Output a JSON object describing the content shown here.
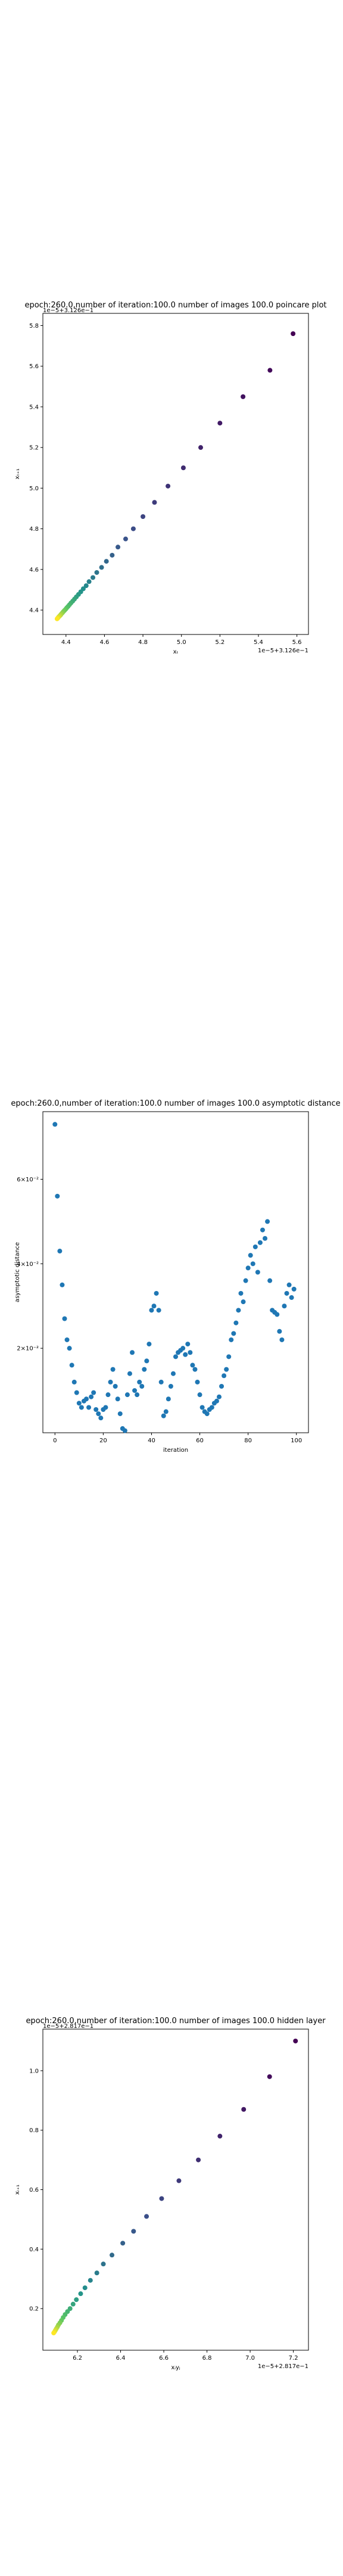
{
  "chart_data": [
    {
      "type": "scatter",
      "title": "epoch:260.0,number of iteration:100.0 number of images 100.0 poincare plot",
      "xlabel": "xₜ",
      "ylabel": "xₜ₊₁",
      "x_offset_text": "1e−5+3.126e−1",
      "y_offset_text": "1e−5+3.126e−1",
      "xlim": [
        4.28,
        5.66
      ],
      "ylim": [
        4.28,
        5.86
      ],
      "xticks": [
        4.4,
        4.6,
        4.8,
        5.0,
        5.2,
        5.4,
        5.6
      ],
      "yticks": [
        4.4,
        4.6,
        4.8,
        5.0,
        5.2,
        5.4,
        5.6,
        5.8
      ],
      "grid": false,
      "colormap": "viridis",
      "x": [
        5.58,
        5.46,
        5.32,
        5.2,
        5.1,
        5.01,
        4.93,
        4.86,
        4.8,
        4.75,
        4.71,
        4.67,
        4.64,
        4.61,
        4.585,
        4.56,
        4.54,
        4.52,
        4.505,
        4.49,
        4.477,
        4.465,
        4.454,
        4.444,
        4.435,
        4.426,
        4.418,
        4.411,
        4.404,
        4.398,
        4.392,
        4.386,
        4.381,
        4.376,
        4.372,
        4.368,
        4.364,
        4.36,
        4.357,
        4.354
      ],
      "y": [
        5.76,
        5.58,
        5.45,
        5.32,
        5.2,
        5.1,
        5.01,
        4.93,
        4.86,
        4.8,
        4.75,
        4.71,
        4.67,
        4.64,
        4.61,
        4.585,
        4.56,
        4.54,
        4.52,
        4.505,
        4.49,
        4.477,
        4.465,
        4.454,
        4.444,
        4.435,
        4.426,
        4.418,
        4.411,
        4.404,
        4.398,
        4.392,
        4.386,
        4.381,
        4.376,
        4.372,
        4.368,
        4.364,
        4.36,
        4.357
      ]
    },
    {
      "type": "scatter",
      "title": "epoch:260.0,number of iteration:100.0  number of images 100.0 asymptotic distance",
      "xlabel": "iteration",
      "ylabel": "asymptotic distance",
      "xlim": [
        -5,
        105
      ],
      "ylim": [
        0,
        7.6
      ],
      "xticks": [
        0,
        20,
        40,
        60,
        80,
        100
      ],
      "yticks": [
        2,
        4,
        6
      ],
      "ytick_labels": [
        "2×10⁻²",
        "4×10⁻²",
        "6×10⁻²"
      ],
      "grid": false,
      "color": "#1f77b4",
      "x": [
        0,
        1,
        2,
        3,
        4,
        5,
        6,
        7,
        8,
        9,
        10,
        11,
        12,
        13,
        14,
        15,
        16,
        17,
        18,
        19,
        20,
        21,
        22,
        23,
        24,
        25,
        26,
        27,
        28,
        29,
        30,
        31,
        32,
        33,
        34,
        35,
        36,
        37,
        38,
        39,
        40,
        41,
        42,
        43,
        44,
        45,
        46,
        47,
        48,
        49,
        50,
        51,
        52,
        53,
        54,
        55,
        56,
        57,
        58,
        59,
        60,
        61,
        62,
        63,
        64,
        65,
        66,
        67,
        68,
        69,
        70,
        71,
        72,
        73,
        74,
        75,
        76,
        77,
        78,
        79,
        80,
        81,
        82,
        83,
        84,
        85,
        86,
        87,
        88,
        89,
        90,
        91,
        92,
        93,
        94,
        95,
        96,
        97,
        98,
        99
      ],
      "y": [
        7.3,
        5.6,
        4.3,
        3.5,
        2.7,
        2.2,
        2.0,
        1.6,
        1.2,
        0.95,
        0.7,
        0.6,
        0.75,
        0.8,
        0.6,
        0.85,
        0.95,
        0.55,
        0.45,
        0.35,
        0.55,
        0.6,
        0.9,
        1.2,
        1.5,
        1.1,
        0.8,
        0.45,
        0.1,
        0.05,
        0.9,
        1.4,
        1.9,
        1.0,
        0.9,
        1.2,
        1.1,
        1.5,
        1.7,
        2.1,
        2.9,
        3.0,
        3.3,
        2.9,
        1.2,
        0.4,
        0.5,
        0.8,
        1.1,
        1.4,
        1.8,
        1.9,
        1.95,
        2.0,
        1.85,
        2.1,
        1.9,
        1.6,
        1.5,
        1.2,
        0.9,
        0.6,
        0.5,
        0.45,
        0.55,
        0.6,
        0.7,
        0.75,
        0.85,
        1.1,
        1.35,
        1.5,
        1.8,
        2.2,
        2.35,
        2.6,
        2.9,
        3.3,
        3.1,
        3.6,
        3.9,
        4.2,
        4.0,
        4.4,
        3.8,
        4.5,
        4.8,
        4.6,
        5.0,
        3.6,
        2.9,
        2.85,
        2.8,
        2.4,
        2.2,
        3.0,
        3.3,
        3.5,
        3.2,
        3.4
      ]
    },
    {
      "type": "scatter",
      "title": "epoch:260.0,number of iteration:100.0  number of images 100.0 hidden layer",
      "xlabel": "xᵢyⱼ",
      "ylabel": "xᵢ₊₁",
      "x_offset_text": "1e−5+2.817e−1",
      "y_offset_text": "1e−5+2.817e−1",
      "xlim": [
        6.04,
        7.27
      ],
      "ylim": [
        0.06,
        1.14
      ],
      "xticks": [
        6.2,
        6.4,
        6.6,
        6.8,
        7.0,
        7.2
      ],
      "yticks": [
        0.2,
        0.4,
        0.6,
        0.8,
        1.0
      ],
      "grid": false,
      "colormap": "viridis",
      "x": [
        7.21,
        7.09,
        6.97,
        6.86,
        6.76,
        6.67,
        6.59,
        6.52,
        6.46,
        6.41,
        6.36,
        6.32,
        6.29,
        6.26,
        6.235,
        6.215,
        6.195,
        6.18,
        6.166,
        6.154,
        6.143,
        6.134,
        6.126,
        6.119,
        6.112,
        6.107,
        6.102,
        6.098,
        6.094,
        6.09
      ],
      "y": [
        1.1,
        0.98,
        0.87,
        0.78,
        0.7,
        0.63,
        0.57,
        0.51,
        0.46,
        0.42,
        0.38,
        0.35,
        0.32,
        0.295,
        0.27,
        0.25,
        0.23,
        0.215,
        0.2,
        0.19,
        0.18,
        0.17,
        0.16,
        0.152,
        0.145,
        0.138,
        0.132,
        0.127,
        0.122,
        0.118
      ]
    }
  ]
}
